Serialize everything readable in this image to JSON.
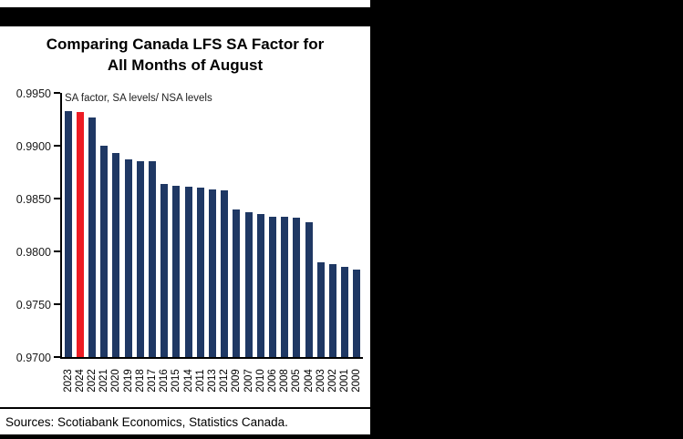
{
  "window": {
    "background": "#000000",
    "panel_background": "#ffffff"
  },
  "chart": {
    "title_line1": "Comparing Canada LFS SA Factor for",
    "title_line2": "All Months of August",
    "annotation": "SA factor, SA levels/ NSA levels",
    "source": "Sources: Scotiabank Economics, Statistics Canada.",
    "bar_color": "#1F3864",
    "highlight_color": "#ED1C24",
    "highlight_category": "2024"
  },
  "chart_data": {
    "type": "bar",
    "title": "Comparing Canada LFS SA Factor for All Months of August",
    "subtitle": "SA factor, SA levels/ NSA levels",
    "source": "Sources: Scotiabank Economics, Statistics Canada.",
    "xlabel": "",
    "ylabel": "SA factor, SA levels/ NSA levels",
    "categories": [
      "2023",
      "2024",
      "2022",
      "2021",
      "2020",
      "2019",
      "2018",
      "2017",
      "2016",
      "2015",
      "2014",
      "2011",
      "2013",
      "2012",
      "2009",
      "2007",
      "2010",
      "2006",
      "2008",
      "2005",
      "2004",
      "2003",
      "2002",
      "2001",
      "2000"
    ],
    "values": [
      0.9933,
      0.9932,
      0.9927,
      0.99,
      0.9893,
      0.9887,
      0.9885,
      0.9885,
      0.9864,
      0.9862,
      0.9861,
      0.986,
      0.9859,
      0.9858,
      0.984,
      0.9837,
      0.9835,
      0.9833,
      0.9833,
      0.9832,
      0.9828,
      0.979,
      0.9788,
      0.9785,
      0.9783
    ],
    "ylim": [
      0.97,
      0.995
    ],
    "yticks": [
      0.97,
      0.975,
      0.98,
      0.985,
      0.99,
      0.995
    ],
    "ytick_labels": [
      "0.9700",
      "0.9750",
      "0.9800",
      "0.9850",
      "0.9900",
      "0.9950"
    ],
    "grid": false,
    "legend": "none",
    "bar_order": "sorted descending by value",
    "highlight": {
      "category": "2024",
      "color": "#ED1C24"
    },
    "default_bar_color": "#1F3864"
  }
}
